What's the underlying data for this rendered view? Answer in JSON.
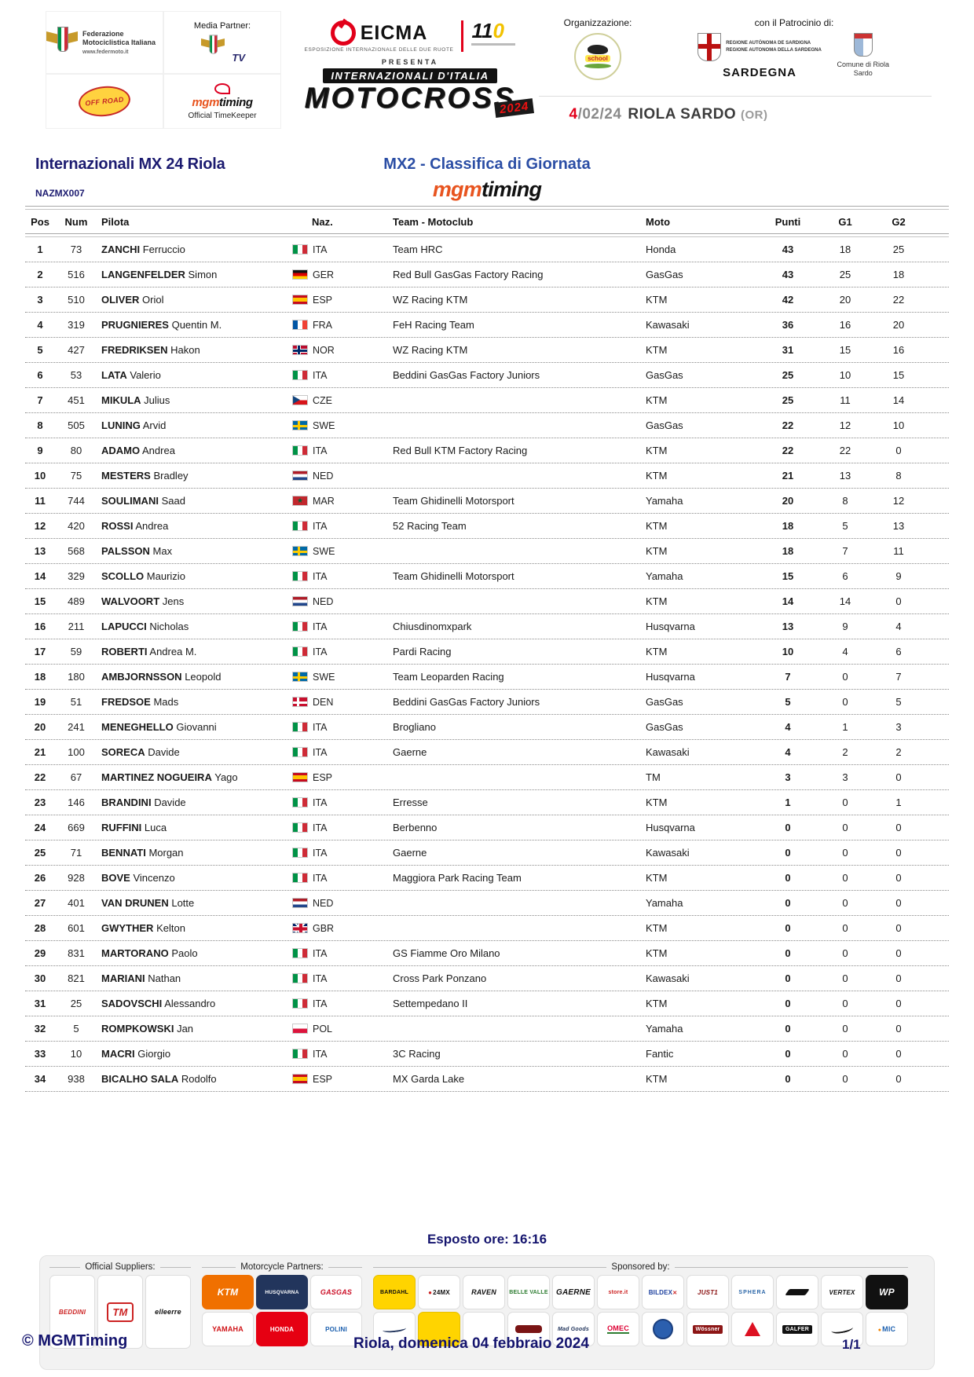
{
  "header": {
    "fmi_name": "Federazione Motociclistica Italiana",
    "fmi_url": "www.federmoto.it",
    "media_partner_label": "Media Partner:",
    "fmi_tv_label": "TV",
    "offroad_label": "OFF ROAD",
    "timekeeper_label": "Official TimeKeeper",
    "eicma_name": "EICMA",
    "eicma_subtitle": "ESPOSIZIONE INTERNAZIONALE DELLE DUE RUOTE",
    "anniversary": {
      "first": "11",
      "zero": "0"
    },
    "presenta": "PRESENTA",
    "event_line1": "INTERNAZIONALI D'ITALIA",
    "event_line2": "MOTOCROSS",
    "event_year": "2024",
    "organizzazione_label": "Organizzazione:",
    "school_label": "school",
    "patrocinio_label": "con il Patrocinio di:",
    "regione_line1": "REGIONE AUTÒNOMA DE SARDIGNA",
    "regione_line2": "REGIONE AUTONOMA DELLA SARDEGNA",
    "sardegna_label": "SARDEGNA",
    "comune_label": "Comune di Riola Sardo",
    "date_day": "4",
    "date_rest": "/02/24",
    "location": "RIOLA SARDO",
    "location_suffix": "(OR)"
  },
  "titles": {
    "left": "Internazionali MX 24 Riola",
    "center": "MX2 - Classifica di Giornata",
    "code": "NAZMX007",
    "timing_mgm": "mgm",
    "timing_word": "timing"
  },
  "table": {
    "columns": [
      "Pos",
      "Num",
      "Pilota",
      "Naz.",
      "Team - Motoclub",
      "Moto",
      "Punti",
      "G1",
      "G2"
    ],
    "rows": [
      {
        "pos": "1",
        "num": "73",
        "surname": "ZANCHI",
        "name": "Ferruccio",
        "nat": "ITA",
        "team": "Team HRC",
        "moto": "Honda",
        "punti": "43",
        "g1": "18",
        "g2": "25"
      },
      {
        "pos": "2",
        "num": "516",
        "surname": "LANGENFELDER",
        "name": "Simon",
        "nat": "GER",
        "team": "Red Bull GasGas Factory Racing",
        "moto": "GasGas",
        "punti": "43",
        "g1": "25",
        "g2": "18"
      },
      {
        "pos": "3",
        "num": "510",
        "surname": "OLIVER",
        "name": "Oriol",
        "nat": "ESP",
        "team": "WZ Racing KTM",
        "moto": "KTM",
        "punti": "42",
        "g1": "20",
        "g2": "22"
      },
      {
        "pos": "4",
        "num": "319",
        "surname": "PRUGNIERES",
        "name": "Quentin M.",
        "nat": "FRA",
        "team": "FeH Racing Team",
        "moto": "Kawasaki",
        "punti": "36",
        "g1": "16",
        "g2": "20"
      },
      {
        "pos": "5",
        "num": "427",
        "surname": "FREDRIKSEN",
        "name": "Hakon",
        "nat": "NOR",
        "team": "WZ Racing KTM",
        "moto": "KTM",
        "punti": "31",
        "g1": "15",
        "g2": "16"
      },
      {
        "pos": "6",
        "num": "53",
        "surname": "LATA",
        "name": "Valerio",
        "nat": "ITA",
        "team": "Beddini GasGas Factory Juniors",
        "moto": "GasGas",
        "punti": "25",
        "g1": "10",
        "g2": "15"
      },
      {
        "pos": "7",
        "num": "451",
        "surname": "MIKULA",
        "name": "Julius",
        "nat": "CZE",
        "team": "",
        "moto": "KTM",
        "punti": "25",
        "g1": "11",
        "g2": "14"
      },
      {
        "pos": "8",
        "num": "505",
        "surname": "LUNING",
        "name": "Arvid",
        "nat": "SWE",
        "team": "",
        "moto": "GasGas",
        "punti": "22",
        "g1": "12",
        "g2": "10"
      },
      {
        "pos": "9",
        "num": "80",
        "surname": "ADAMO",
        "name": "Andrea",
        "nat": "ITA",
        "team": "Red Bull KTM Factory Racing",
        "moto": "KTM",
        "punti": "22",
        "g1": "22",
        "g2": "0"
      },
      {
        "pos": "10",
        "num": "75",
        "surname": "MESTERS",
        "name": "Bradley",
        "nat": "NED",
        "team": "",
        "moto": "KTM",
        "punti": "21",
        "g1": "13",
        "g2": "8"
      },
      {
        "pos": "11",
        "num": "744",
        "surname": "SOULIMANI",
        "name": "Saad",
        "nat": "MAR",
        "team": "Team Ghidinelli Motorsport",
        "moto": "Yamaha",
        "punti": "20",
        "g1": "8",
        "g2": "12"
      },
      {
        "pos": "12",
        "num": "420",
        "surname": "ROSSI",
        "name": "Andrea",
        "nat": "ITA",
        "team": "52 Racing Team",
        "moto": "KTM",
        "punti": "18",
        "g1": "5",
        "g2": "13"
      },
      {
        "pos": "13",
        "num": "568",
        "surname": "PALSSON",
        "name": "Max",
        "nat": "SWE",
        "team": "",
        "moto": "KTM",
        "punti": "18",
        "g1": "7",
        "g2": "11"
      },
      {
        "pos": "14",
        "num": "329",
        "surname": "SCOLLO",
        "name": "Maurizio",
        "nat": "ITA",
        "team": "Team Ghidinelli Motorsport",
        "moto": "Yamaha",
        "punti": "15",
        "g1": "6",
        "g2": "9"
      },
      {
        "pos": "15",
        "num": "489",
        "surname": "WALVOORT",
        "name": "Jens",
        "nat": "NED",
        "team": "",
        "moto": "KTM",
        "punti": "14",
        "g1": "14",
        "g2": "0"
      },
      {
        "pos": "16",
        "num": "211",
        "surname": "LAPUCCI",
        "name": "Nicholas",
        "nat": "ITA",
        "team": "Chiusdinomxpark",
        "moto": "Husqvarna",
        "punti": "13",
        "g1": "9",
        "g2": "4"
      },
      {
        "pos": "17",
        "num": "59",
        "surname": "ROBERTI",
        "name": "Andrea M.",
        "nat": "ITA",
        "team": "Pardi Racing",
        "moto": "KTM",
        "punti": "10",
        "g1": "4",
        "g2": "6"
      },
      {
        "pos": "18",
        "num": "180",
        "surname": "AMBJORNSSON",
        "name": "Leopold",
        "nat": "SWE",
        "team": "Team Leoparden Racing",
        "moto": "Husqvarna",
        "punti": "7",
        "g1": "0",
        "g2": "7"
      },
      {
        "pos": "19",
        "num": "51",
        "surname": "FREDSOE",
        "name": "Mads",
        "nat": "DEN",
        "team": "Beddini GasGas Factory Juniors",
        "moto": "GasGas",
        "punti": "5",
        "g1": "0",
        "g2": "5"
      },
      {
        "pos": "20",
        "num": "241",
        "surname": "MENEGHELLO",
        "name": "Giovanni",
        "nat": "ITA",
        "team": "Brogliano",
        "moto": "GasGas",
        "punti": "4",
        "g1": "1",
        "g2": "3"
      },
      {
        "pos": "21",
        "num": "100",
        "surname": "SORECA",
        "name": "Davide",
        "nat": "ITA",
        "team": "Gaerne",
        "moto": "Kawasaki",
        "punti": "4",
        "g1": "2",
        "g2": "2"
      },
      {
        "pos": "22",
        "num": "67",
        "surname": "MARTINEZ NOGUEIRA",
        "name": "Yago",
        "nat": "ESP",
        "team": "",
        "moto": "TM",
        "punti": "3",
        "g1": "3",
        "g2": "0"
      },
      {
        "pos": "23",
        "num": "146",
        "surname": "BRANDINI",
        "name": "Davide",
        "nat": "ITA",
        "team": "Erresse",
        "moto": "KTM",
        "punti": "1",
        "g1": "0",
        "g2": "1"
      },
      {
        "pos": "24",
        "num": "669",
        "surname": "RUFFINI",
        "name": "Luca",
        "nat": "ITA",
        "team": "Berbenno",
        "moto": "Husqvarna",
        "punti": "0",
        "g1": "0",
        "g2": "0"
      },
      {
        "pos": "25",
        "num": "71",
        "surname": "BENNATI",
        "name": "Morgan",
        "nat": "ITA",
        "team": "Gaerne",
        "moto": "Kawasaki",
        "punti": "0",
        "g1": "0",
        "g2": "0"
      },
      {
        "pos": "26",
        "num": "928",
        "surname": "BOVE",
        "name": "Vincenzo",
        "nat": "ITA",
        "team": "Maggiora Park Racing Team",
        "moto": "KTM",
        "punti": "0",
        "g1": "0",
        "g2": "0"
      },
      {
        "pos": "27",
        "num": "401",
        "surname": "VAN DRUNEN",
        "name": "Lotte",
        "nat": "NED",
        "team": "",
        "moto": "Yamaha",
        "punti": "0",
        "g1": "0",
        "g2": "0"
      },
      {
        "pos": "28",
        "num": "601",
        "surname": "GWYTHER",
        "name": "Kelton",
        "nat": "GBR",
        "team": "",
        "moto": "KTM",
        "punti": "0",
        "g1": "0",
        "g2": "0"
      },
      {
        "pos": "29",
        "num": "831",
        "surname": "MARTORANO",
        "name": "Paolo",
        "nat": "ITA",
        "team": "GS Fiamme Oro Milano",
        "moto": "KTM",
        "punti": "0",
        "g1": "0",
        "g2": "0"
      },
      {
        "pos": "30",
        "num": "821",
        "surname": "MARIANI",
        "name": "Nathan",
        "nat": "ITA",
        "team": "Cross Park Ponzano",
        "moto": "Kawasaki",
        "punti": "0",
        "g1": "0",
        "g2": "0"
      },
      {
        "pos": "31",
        "num": "25",
        "surname": "SADOVSCHI",
        "name": "Alessandro",
        "nat": "ITA",
        "team": "Settempedano II",
        "moto": "KTM",
        "punti": "0",
        "g1": "0",
        "g2": "0"
      },
      {
        "pos": "32",
        "num": "5",
        "surname": "ROMPKOWSKI",
        "name": "Jan",
        "nat": "POL",
        "team": "",
        "moto": "Yamaha",
        "punti": "0",
        "g1": "0",
        "g2": "0"
      },
      {
        "pos": "33",
        "num": "10",
        "surname": "MACRI",
        "name": "Giorgio",
        "nat": "ITA",
        "team": "3C Racing",
        "moto": "Fantic",
        "punti": "0",
        "g1": "0",
        "g2": "0"
      },
      {
        "pos": "34",
        "num": "938",
        "surname": "BICALHO SALA",
        "name": "Rodolfo",
        "nat": "ESP",
        "team": "MX Garda Lake",
        "moto": "KTM",
        "punti": "0",
        "g1": "0",
        "g2": "0"
      }
    ]
  },
  "footer": {
    "esposto": "Esposto ore: 16:16",
    "copyright": "© MGMTiming",
    "date_line": "Riola, domenica 04 febbraio 2024",
    "page": "1/1",
    "groups": [
      {
        "label": "Official Suppliers:",
        "css": "g-suppliers",
        "rows": [
          [
            {
              "label": "BEDDINI",
              "style": "beddini"
            },
            {
              "label": "TM",
              "style": "tm"
            },
            {
              "label": "elleerre",
              "style": "elleerre"
            }
          ]
        ]
      },
      {
        "label": "Motorcycle Partners:",
        "css": "g-partners",
        "rows": [
          [
            {
              "label": "KTM",
              "style": "ktm"
            },
            {
              "label": "HUSQVARNA",
              "style": "husq"
            },
            {
              "label": "GASGAS",
              "style": "gasgas"
            }
          ],
          [
            {
              "label": "YAMAHA",
              "style": "yamaha"
            },
            {
              "label": "HONDA",
              "style": "honda"
            },
            {
              "label": "POLINI",
              "style": "polini"
            }
          ]
        ]
      },
      {
        "label": "Sponsored by:",
        "css": "g-sponsored",
        "rows": [
          [
            {
              "label": "BARDAHL",
              "style": "bardahl"
            },
            {
              "label": "24MX",
              "style": "mx24"
            },
            {
              "label": "RAVEN",
              "style": "raven"
            },
            {
              "label": "BELLE VALLE",
              "style": "belle"
            },
            {
              "label": "GAERNE",
              "style": "gaerne"
            },
            {
              "label": "store.it",
              "style": "storeit"
            },
            {
              "label": "BILDEX",
              "style": "bildex"
            },
            {
              "label": "JUST1",
              "style": "just1"
            },
            {
              "label": "SPHERA",
              "style": "sphera"
            },
            {
              "label": "",
              "style": "swoosh"
            },
            {
              "label": "VERTEX",
              "style": "vertex"
            },
            {
              "label": "WP",
              "style": "wp"
            }
          ],
          [
            {
              "label": "",
              "style": "script"
            },
            {
              "label": "",
              "style": "yellow"
            },
            {
              "label": "",
              "style": "blank"
            },
            {
              "label": "",
              "style": "darkbar"
            },
            {
              "label": "Mad Goods",
              "style": "madgoods"
            },
            {
              "label": "OMEC",
              "style": "omec"
            },
            {
              "label": "",
              "style": "bluecircle"
            },
            {
              "label": "Wössner",
              "style": "wossner"
            },
            {
              "label": "",
              "style": "redtri"
            },
            {
              "label": "GALFER",
              "style": "galfer"
            },
            {
              "label": "",
              "style": "hscript"
            },
            {
              "label": "MIC",
              "style": "mic"
            }
          ]
        ]
      }
    ]
  }
}
